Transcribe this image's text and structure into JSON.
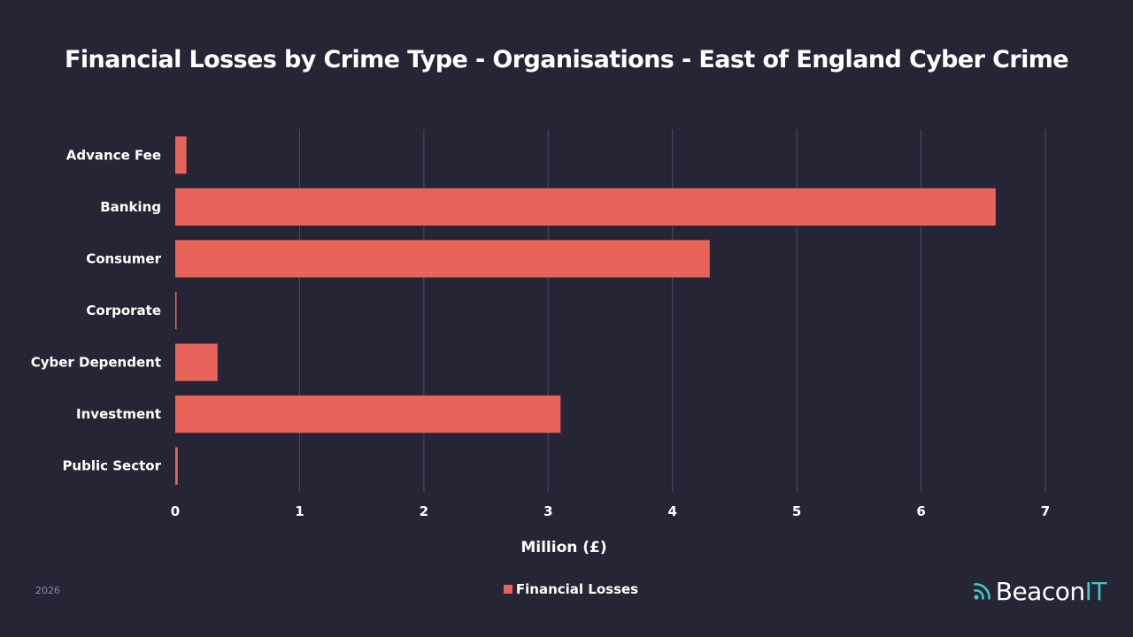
{
  "colors": {
    "background": "#252536",
    "bar": "#e8645a",
    "grid": "#4a4a6a",
    "brand_accent": "#3ec9c2"
  },
  "chart_data": {
    "type": "bar",
    "orientation": "horizontal",
    "title": "Financial Losses by Crime Type - Organisations - East of England Cyber Crime",
    "xlabel": "Million (£)",
    "ylabel": "",
    "xlim": [
      0,
      7
    ],
    "xticks": [
      0,
      1,
      2,
      3,
      4,
      5,
      6,
      7
    ],
    "grid": true,
    "legend_position": "bottom",
    "categories": [
      "Advance Fee",
      "Banking",
      "Consumer",
      "Corporate",
      "Cyber Dependent",
      "Investment",
      "Public Sector"
    ],
    "series": [
      {
        "name": "Financial Losses",
        "values": [
          0.09,
          6.6,
          4.3,
          0.01,
          0.34,
          3.1,
          0.02
        ]
      }
    ]
  },
  "footer": {
    "year": "2026",
    "brand_name": "Beacon",
    "brand_accent": "IT",
    "brand_icon": "signal-waves-icon"
  }
}
